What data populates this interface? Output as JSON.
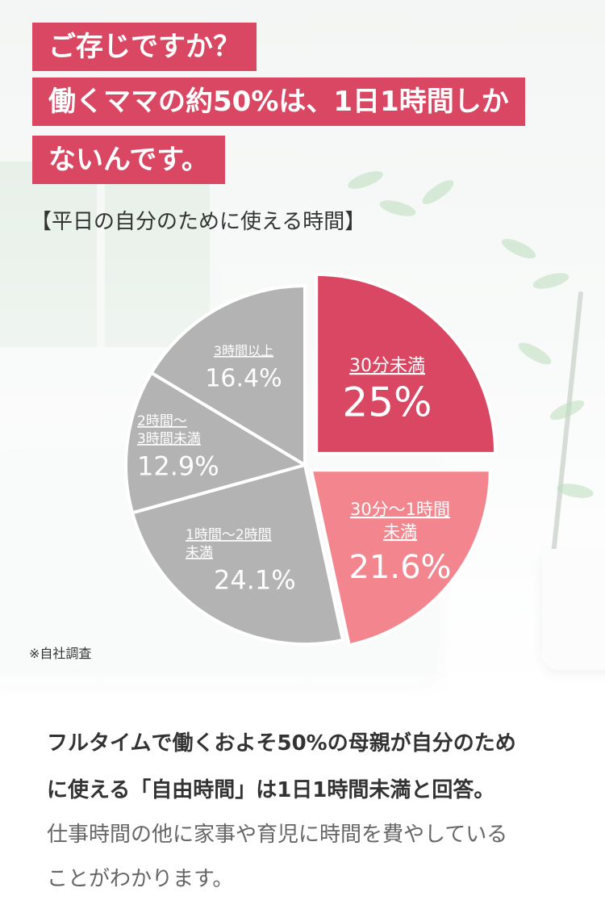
{
  "headline": {
    "line1": "ご存じですか？",
    "line2": "働くママの約50%は、1日1時間しか",
    "line3": "ないんです。"
  },
  "chart_data": {
    "type": "pie",
    "title": "【平日の自分のために使える時間】",
    "slices": [
      {
        "label_lines": [
          "30分未満"
        ],
        "value": 25,
        "value_label": "25%",
        "color": "#d94763",
        "text_color": "#ffffff"
      },
      {
        "label_lines": [
          "30分〜1時間",
          "未満"
        ],
        "value": 21.6,
        "value_label": "21.6%",
        "color": "#f2858d",
        "text_color": "#ffffff"
      },
      {
        "label_lines": [
          "1時間〜2時間",
          "未満"
        ],
        "value": 24.1,
        "value_label": "24.1%",
        "color": "#b3b3b3",
        "text_color": "#ffffff"
      },
      {
        "label_lines": [
          "2時間〜",
          "3時間未満"
        ],
        "value": 12.9,
        "value_label": "12.9%",
        "color": "#b3b3b3",
        "text_color": "#ffffff"
      },
      {
        "label_lines": [
          "3時間以上"
        ],
        "value": 16.4,
        "value_label": "16.4%",
        "color": "#b3b3b3",
        "text_color": "#ffffff"
      }
    ],
    "note": "※自社調査"
  },
  "description": {
    "line1": "フルタイムで働くおよそ50%の母親が自分のため",
    "line2": "に使える「自由時間」は1日1時間未満と回答。",
    "line3": "仕事時間の他に家事や育児に時間を費やしている",
    "line4": "ことがわかります。"
  }
}
